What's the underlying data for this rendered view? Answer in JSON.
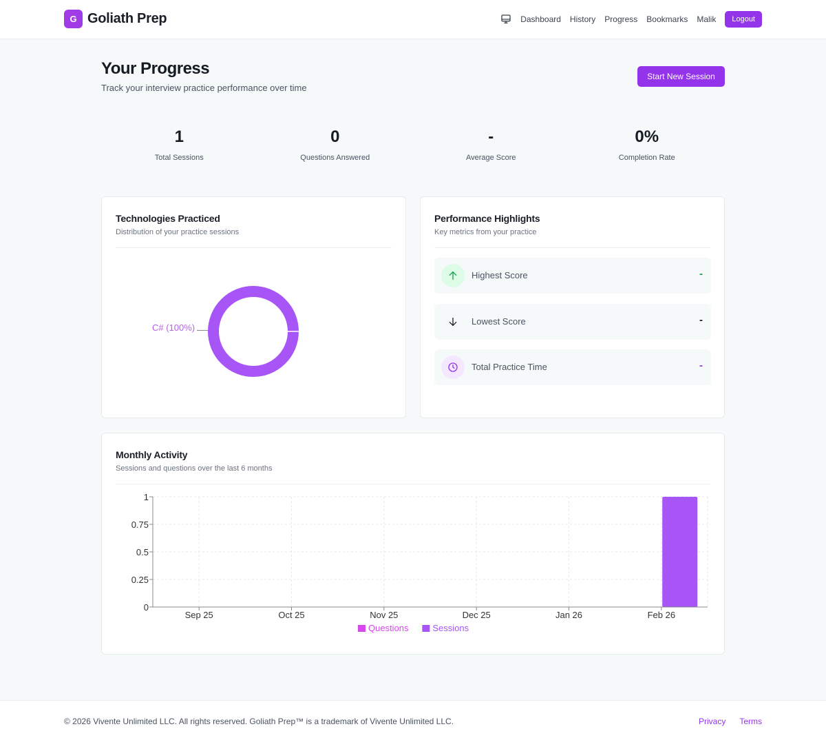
{
  "header": {
    "brand_letter": "G",
    "brand_name": "Goliath Prep",
    "nav_icon": "monitor-icon",
    "nav": [
      {
        "label": "Dashboard"
      },
      {
        "label": "History"
      },
      {
        "label": "Progress"
      },
      {
        "label": "Bookmarks"
      }
    ],
    "user_name": "Malik",
    "logout_label": "Logout"
  },
  "page": {
    "title": "Your Progress",
    "subtitle": "Track your interview practice performance over time",
    "start_button": "Start New Session"
  },
  "stats": [
    {
      "value": "1",
      "label": "Total Sessions"
    },
    {
      "value": "0",
      "label": "Questions Answered"
    },
    {
      "value": "-",
      "label": "Average Score"
    },
    {
      "value": "0%",
      "label": "Completion Rate"
    }
  ],
  "technologies": {
    "title": "Technologies Practiced",
    "subtitle": "Distribution of your practice sessions",
    "slices": [
      {
        "label": "C# (100%)",
        "name": "C#",
        "percent": 100,
        "color": "#a855f7"
      }
    ]
  },
  "performance": {
    "title": "Performance Highlights",
    "subtitle": "Key metrics from your practice",
    "metrics": [
      {
        "icon": "arrow-up-icon",
        "label": "Highest Score",
        "value": "-",
        "color": "#16a34a",
        "icon_bg": "#dcfce7"
      },
      {
        "icon": "arrow-down-icon",
        "label": "Lowest Score",
        "value": "-",
        "color": "#1b1f27",
        "icon_bg": "transparent"
      },
      {
        "icon": "clock-icon",
        "label": "Total Practice Time",
        "value": "-",
        "color": "#9333ea",
        "icon_bg": "#f3e8ff"
      }
    ]
  },
  "activity": {
    "title": "Monthly Activity",
    "subtitle": "Sessions and questions over the last 6 months"
  },
  "chart_data": {
    "type": "bar",
    "title": "Monthly Activity",
    "subtitle": "Sessions and questions over the last 6 months",
    "categories": [
      "Sep 25",
      "Oct 25",
      "Nov 25",
      "Dec 25",
      "Jan 26",
      "Feb 26"
    ],
    "series": [
      {
        "name": "Questions",
        "color": "#d946ef",
        "values": [
          0,
          0,
          0,
          0,
          0,
          0
        ]
      },
      {
        "name": "Sessions",
        "color": "#a855f7",
        "values": [
          0,
          0,
          0,
          0,
          0,
          1
        ]
      }
    ],
    "yticks": [
      "0",
      "0.25",
      "0.5",
      "0.75",
      "1"
    ],
    "ylim": [
      0,
      1
    ],
    "xlabel": "",
    "ylabel": "",
    "grid": true,
    "legend_position": "bottom"
  },
  "footer": {
    "copyright": "© 2026 Vivente Unlimited LLC. All rights reserved. Goliath Prep™ is a trademark of Vivente Unlimited LLC.",
    "links": [
      {
        "label": "Privacy"
      },
      {
        "label": "Terms"
      }
    ]
  }
}
